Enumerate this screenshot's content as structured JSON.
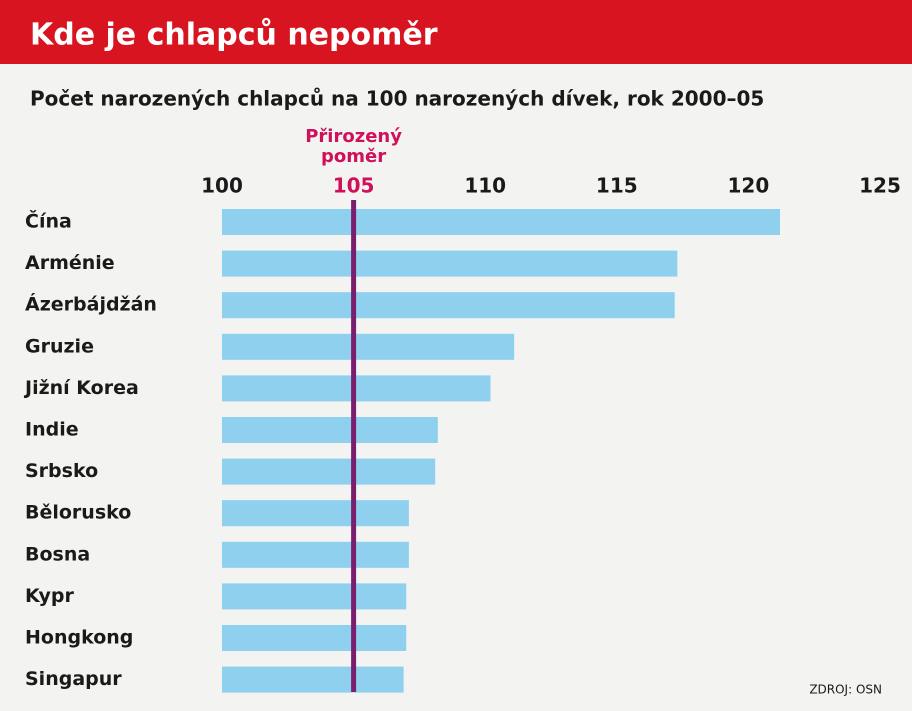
{
  "chart_data": {
    "type": "barh",
    "title": "Kde je chlapců nepoměr",
    "subtitle": "Počet narozených chlapců na 100 narozených dívek, rok 2000–05",
    "categories": [
      "Čína",
      "Arménie",
      "Ázerbájdžán",
      "Gruzie",
      "Jižní Korea",
      "Indie",
      "Srbsko",
      "Bělorusko",
      "Bosna",
      "Kypr",
      "Hongkong",
      "Singapur"
    ],
    "values": [
      121.2,
      117.3,
      117.2,
      111.1,
      110.2,
      108.2,
      108.1,
      107.1,
      107.1,
      107.0,
      107.0,
      106.9
    ],
    "color": "#8fd0ee",
    "xlim": [
      100,
      125
    ],
    "xticks": [
      100,
      105,
      110,
      115,
      120,
      125
    ],
    "reference": {
      "value": 105,
      "label": [
        "Přirozený",
        "poměr"
      ],
      "color": "#d0105a",
      "line_color": "#7a1f6e"
    },
    "source": "ZDROJ: OSN",
    "header_color": "#d7141f"
  }
}
